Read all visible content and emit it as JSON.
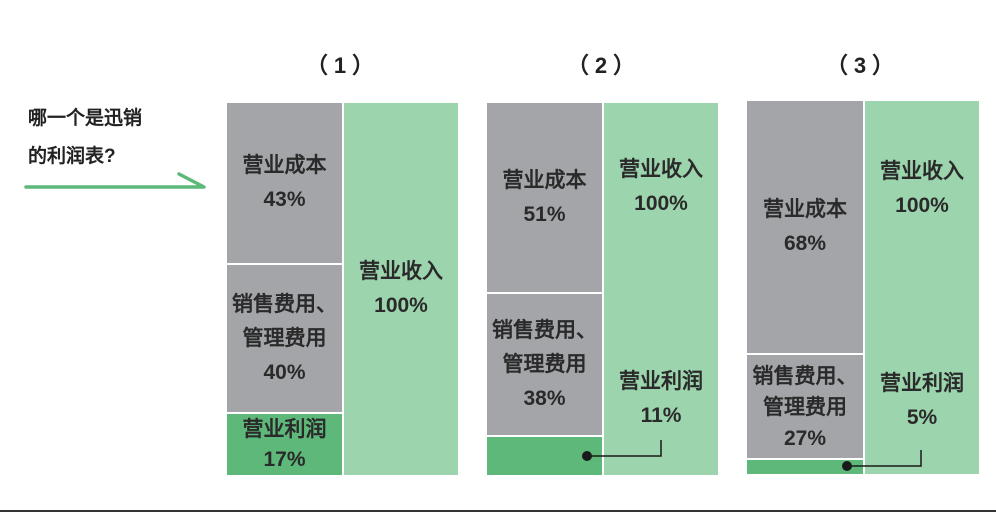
{
  "question": {
    "line1": "哪一个是迅销",
    "line2": "的利润表?"
  },
  "panels": [
    {
      "title": "（1）",
      "cost": {
        "name": "营业成本",
        "pct": "43%"
      },
      "expense": {
        "name1": "销售费用、",
        "name2": "管理费用",
        "pct": "40%"
      },
      "profit": {
        "name": "营业利润",
        "pct": "17%"
      },
      "revenue": {
        "name": "营业收入",
        "pct": "100%"
      }
    },
    {
      "title": "（2）",
      "cost": {
        "name": "营业成本",
        "pct": "51%"
      },
      "expense": {
        "name1": "销售费用、",
        "name2": "管理费用",
        "pct": "38%"
      },
      "profit": {
        "name": "营业利润",
        "pct": "11%"
      },
      "revenue": {
        "name": "营业收入",
        "pct": "100%"
      }
    },
    {
      "title": "（3）",
      "cost": {
        "name": "营业成本",
        "pct": "68%"
      },
      "expense": {
        "name1": "销售费用、",
        "name2": "管理费用",
        "pct": "27%"
      },
      "profit": {
        "name": "营业利润",
        "pct": "5%"
      },
      "revenue": {
        "name": "营业收入",
        "pct": "100%"
      }
    }
  ],
  "colors": {
    "cost": "#a3a5a8",
    "revenue": "#9cd5ad",
    "profit": "#5db87a",
    "arrow": "#5db87a"
  }
}
